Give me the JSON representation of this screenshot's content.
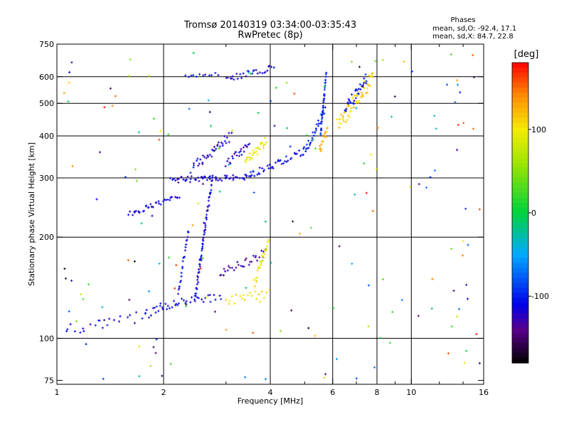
{
  "chart_data": {
    "type": "scatter",
    "title": "Tromsø 20140319 03:34:00-03:35:43",
    "subtitle": "RwPretec (8p)",
    "stats": {
      "heading": "Phases",
      "line1": "mean, sd,O: -92.4, 17.1",
      "line2": "mean, sd,X:  84.7, 22.8"
    },
    "xlabel": "Frequency [MHz]",
    "ylabel": "Stationary phase Virtual Height [km]",
    "x_scale": "log",
    "y_scale": "log",
    "xlim": [
      1,
      16
    ],
    "ylim": [
      73,
      750
    ],
    "x_ticks": [
      {
        "value": 1,
        "label": "1"
      },
      {
        "value": 2,
        "label": "2"
      },
      {
        "value": 4,
        "label": "4"
      },
      {
        "value": 6,
        "label": "6"
      },
      {
        "value": 8,
        "label": "8"
      },
      {
        "value": 10,
        "label": "10"
      },
      {
        "value": 16,
        "label": "16"
      }
    ],
    "x_minor": [
      3,
      5,
      7,
      9,
      12,
      14
    ],
    "y_ticks": [
      {
        "value": 75,
        "label": "75"
      },
      {
        "value": 100,
        "label": "100"
      },
      {
        "value": 200,
        "label": "200"
      },
      {
        "value": 300,
        "label": "300"
      },
      {
        "value": 400,
        "label": "400"
      },
      {
        "value": 500,
        "label": "500"
      },
      {
        "value": 600,
        "label": "600"
      },
      {
        "value": 750,
        "label": "750"
      }
    ],
    "grid_x": [
      2,
      4,
      6,
      8,
      10
    ],
    "grid_y": [
      100,
      200,
      300,
      400,
      500,
      600
    ],
    "colorbar": {
      "label": "[deg]",
      "range": [
        -180,
        180
      ],
      "ticks": [
        {
          "value": 100,
          "label": "100"
        },
        {
          "value": 0,
          "label": "0"
        },
        {
          "value": -100,
          "label": "-100"
        }
      ]
    },
    "traces": [
      {
        "name": "",
        "x0": 1.05,
        "x1": 1.8,
        "h0": 105,
        "h1": 118,
        "n": 24,
        "phase": -110,
        "spread": 4
      },
      {
        "name": "",
        "x0": 1.8,
        "x1": 2.2,
        "h0": 118,
        "h1": 128,
        "n": 20,
        "phase": -112,
        "spread": 3
      },
      {
        "name": "",
        "x0": 2.2,
        "x1": 2.9,
        "h0": 128,
        "h1": 133,
        "n": 20,
        "phase": -108,
        "spread": 3
      },
      {
        "name": "",
        "x0": 3.0,
        "x1": 3.95,
        "h0": 130,
        "h1": 138,
        "n": 20,
        "phase": 105,
        "spread": 4
      },
      {
        "name": "",
        "x0": 2.45,
        "x1": 2.75,
        "h0": 130,
        "h1": 305,
        "n": 70,
        "phase": -112,
        "spread": 2
      },
      {
        "name": "",
        "x0": 2.2,
        "x1": 2.35,
        "h0": 135,
        "h1": 210,
        "n": 22,
        "phase": -110,
        "spread": 2
      },
      {
        "name": "",
        "x0": 1.6,
        "x1": 2.2,
        "h0": 235,
        "h1": 262,
        "n": 36,
        "phase": -115,
        "spread": 2
      },
      {
        "name": "",
        "x0": 2.1,
        "x1": 3.5,
        "h0": 296,
        "h1": 302,
        "n": 60,
        "phase": -118,
        "spread": 2
      },
      {
        "name": "",
        "x0": 3.5,
        "x1": 5.0,
        "h0": 305,
        "h1": 360,
        "n": 40,
        "phase": -108,
        "spread": 2
      },
      {
        "name": "",
        "x0": 5.0,
        "x1": 5.7,
        "h0": 360,
        "h1": 480,
        "n": 30,
        "phase": -100,
        "spread": 3
      },
      {
        "name": "",
        "x0": 5.55,
        "x1": 5.75,
        "h0": 400,
        "h1": 620,
        "n": 34,
        "phase": -100,
        "spread": 2
      },
      {
        "name": "",
        "x0": 2.4,
        "x1": 3.1,
        "h0": 320,
        "h1": 400,
        "n": 36,
        "phase": -118,
        "spread": 3
      },
      {
        "name": "",
        "x0": 3.0,
        "x1": 3.5,
        "h0": 330,
        "h1": 380,
        "n": 22,
        "phase": -120,
        "spread": 3
      },
      {
        "name": "",
        "x0": 3.4,
        "x1": 3.9,
        "h0": 335,
        "h1": 385,
        "n": 28,
        "phase": 95,
        "spread": 3
      },
      {
        "name": "",
        "x0": 5.5,
        "x1": 5.8,
        "h0": 360,
        "h1": 420,
        "n": 18,
        "phase": 125,
        "spread": 3
      },
      {
        "name": "",
        "x0": 2.9,
        "x1": 3.9,
        "h0": 155,
        "h1": 180,
        "n": 28,
        "phase": -130,
        "spread": 3
      },
      {
        "name": "",
        "x0": 3.6,
        "x1": 3.95,
        "h0": 145,
        "h1": 195,
        "n": 24,
        "phase": 100,
        "spread": 3
      },
      {
        "name": "",
        "x0": 3.0,
        "x1": 4.1,
        "h0": 590,
        "h1": 640,
        "n": 28,
        "phase": -115,
        "spread": 2
      },
      {
        "name": "",
        "x0": 2.3,
        "x1": 2.85,
        "h0": 600,
        "h1": 612,
        "n": 12,
        "phase": -110,
        "spread": 1
      },
      {
        "name": "",
        "x0": 6.2,
        "x1": 7.8,
        "h0": 430,
        "h1": 600,
        "n": 60,
        "phase": 110,
        "spread": 5
      },
      {
        "name": "",
        "x0": 6.5,
        "x1": 7.5,
        "h0": 480,
        "h1": 590,
        "n": 30,
        "phase": -105,
        "spread": 4
      }
    ],
    "scatter_noise": {
      "n": 180,
      "x": [
        1,
        16
      ],
      "y": [
        75,
        720
      ]
    }
  }
}
